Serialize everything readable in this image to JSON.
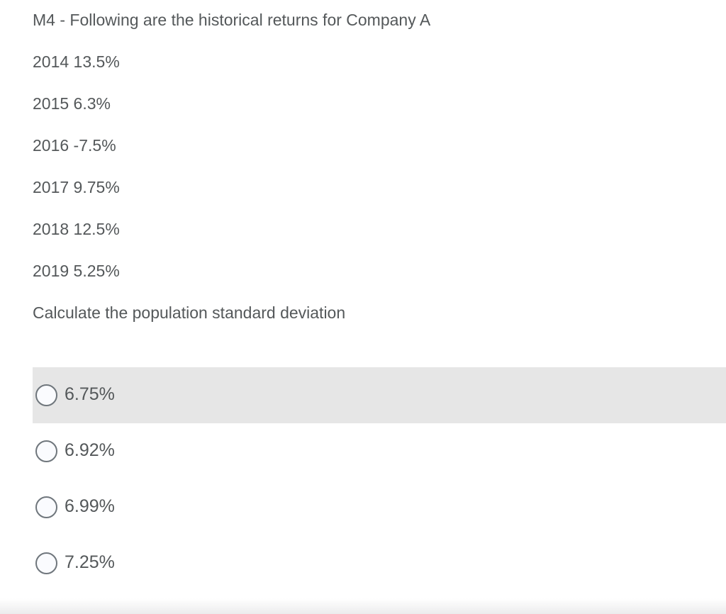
{
  "question": {
    "title": "M4 - Following are the historical returns for Company A",
    "returns": [
      "2014 13.5%",
      "2015 6.3%",
      "2016 -7.5%",
      "2017 9.75%",
      "2018 12.5%",
      "2019 5.25%"
    ],
    "prompt": "Calculate the population standard deviation"
  },
  "options": [
    {
      "label": "6.75%",
      "selected": false,
      "highlighted": true
    },
    {
      "label": "6.92%",
      "selected": false,
      "highlighted": false
    },
    {
      "label": "6.99%",
      "selected": false,
      "highlighted": false
    },
    {
      "label": "7.25%",
      "selected": false,
      "highlighted": false
    }
  ],
  "colors": {
    "text": "#54585a",
    "row_highlight": "#e6e6e6",
    "radio_border": "#6f767c",
    "radio_fill": "#fafbfe",
    "background": "#ffffff"
  }
}
